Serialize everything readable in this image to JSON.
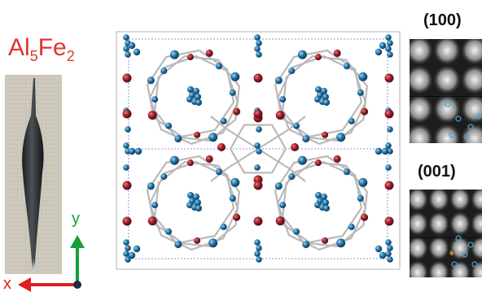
{
  "figure": {
    "compound": {
      "base": "Al",
      "sub1": "5",
      "mid": "Fe",
      "sub2": "2"
    },
    "axes": {
      "y_label": "y",
      "x_label": "x"
    },
    "panels": [
      {
        "label": "(100)"
      },
      {
        "label": "(001)"
      }
    ],
    "colors": {
      "title_red": "#e0352b",
      "al_atom": "#1f6fa5",
      "fe_atom": "#9b1b25",
      "bond": "#b9b9b9",
      "axis_green": "#14a03c",
      "axis_red": "#e01e1e"
    }
  }
}
